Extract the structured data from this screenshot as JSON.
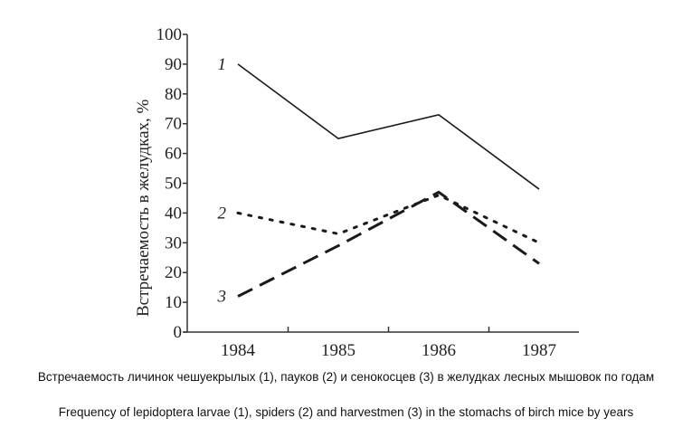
{
  "chart_data": {
    "type": "line",
    "categories": [
      "1984",
      "1985",
      "1986",
      "1987"
    ],
    "ylabel": "Встречаемость в желудках, %",
    "ylim": [
      0,
      100
    ],
    "yticks": [
      "0",
      "10",
      "20",
      "30",
      "40",
      "50",
      "60",
      "70",
      "80",
      "90",
      "100"
    ],
    "grid": false,
    "series": [
      {
        "name": "1",
        "values": [
          90,
          65,
          73,
          48
        ],
        "style": "solid"
      },
      {
        "name": "2",
        "values": [
          40,
          33,
          46,
          30
        ],
        "style": "dotted"
      },
      {
        "name": "3",
        "values": [
          12,
          29,
          47,
          23
        ],
        "style": "dashed"
      }
    ],
    "line_color": "#1a1a1a"
  },
  "caption": {
    "ru": "Встречаемость личинок чешуекрылых (1), пауков (2) и сенокосцев (3) в желудках лесных мышовок по годам",
    "en": "Frequency of lepidoptera larvae (1), spiders (2) and harvestmen (3) in the stomachs of birch mice by years"
  }
}
